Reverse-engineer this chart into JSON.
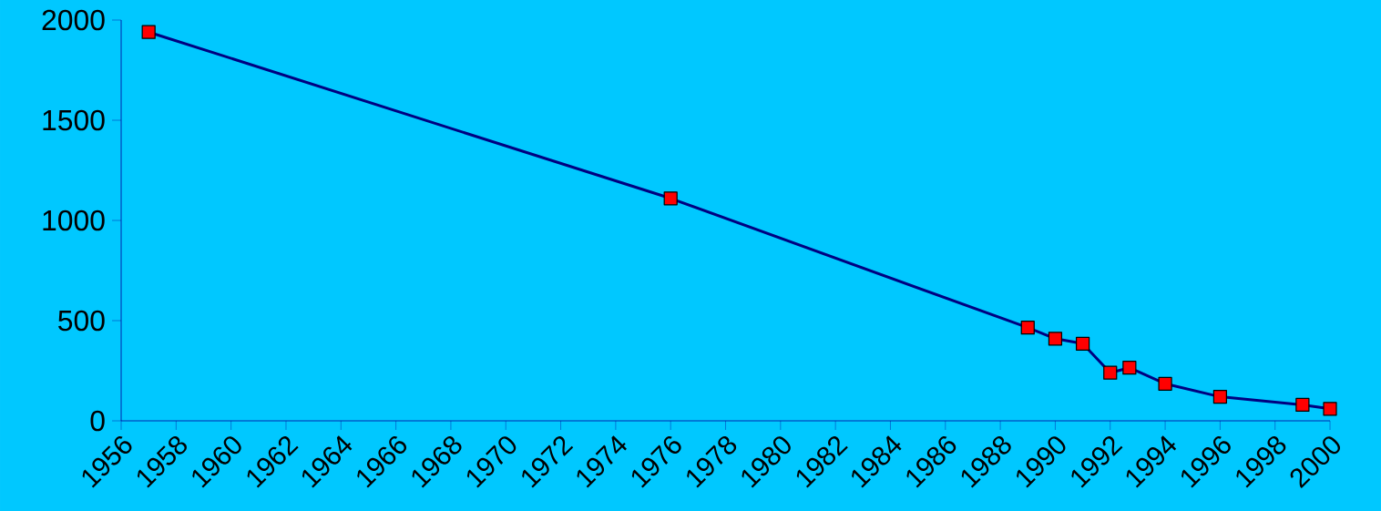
{
  "chart_data": {
    "type": "line",
    "x": [
      1957,
      1976,
      1989,
      1990,
      1991,
      1992,
      1992.7,
      1994,
      1996,
      1999,
      2000
    ],
    "series": [
      {
        "color": "#000080",
        "values": [
          1940,
          1110,
          465,
          410,
          385,
          240,
          265,
          185,
          120,
          80,
          60
        ]
      }
    ],
    "marker": "square",
    "line_style": "solid",
    "grid": false,
    "xlim": [
      1956,
      2000
    ],
    "xticks": [
      1956,
      1958,
      1960,
      1962,
      1964,
      1966,
      1968,
      1970,
      1972,
      1974,
      1976,
      1978,
      1980,
      1982,
      1984,
      1986,
      1988,
      1990,
      1992,
      1994,
      1996,
      1998,
      2000
    ],
    "ylim": [
      0,
      2000
    ],
    "yticks": [
      0,
      500,
      1000,
      1500,
      2000
    ]
  }
}
